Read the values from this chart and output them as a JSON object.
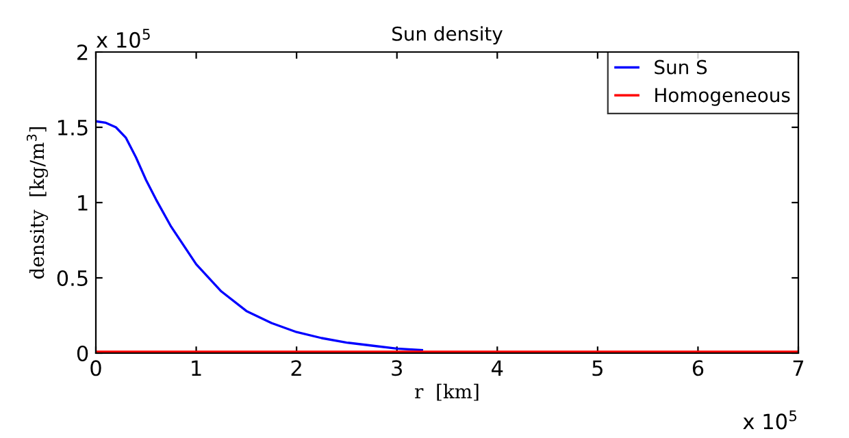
{
  "chart_data": {
    "type": "line",
    "title": "Sun density",
    "xlabel": "r  [km]",
    "ylabel": "density  [kg/m$^{3}$]",
    "annotations": [
      "x 10$^{5}$",
      "x 10$^{5}$"
    ],
    "xlim": [
      0,
      7
    ],
    "xticks": [
      0,
      1,
      2,
      3,
      4,
      5,
      6,
      7
    ],
    "ylim": [
      0,
      2
    ],
    "yticks": [
      0,
      0.5,
      1,
      1.5,
      2
    ],
    "grid": false,
    "legend": "top right",
    "marker": "none",
    "line_style": "solid",
    "series": [
      {
        "name": "Sun S",
        "color": "#0000ff",
        "x": [
          0,
          0.1,
          0.2,
          0.3,
          0.4,
          0.5,
          0.6,
          0.75,
          1.0,
          1.25,
          1.5,
          1.75,
          2.0,
          2.25,
          2.5,
          2.75,
          3.0,
          3.25
        ],
        "values": [
          1.54,
          1.53,
          1.5,
          1.43,
          1.3,
          1.15,
          1.02,
          0.84,
          0.59,
          0.41,
          0.28,
          0.2,
          0.14,
          0.1,
          0.07,
          0.05,
          0.03,
          0.02
        ]
      },
      {
        "name": "Homogeneous",
        "color": "#ff0000",
        "x": [
          0,
          7
        ],
        "values": [
          0.01,
          0.01
        ]
      }
    ]
  }
}
